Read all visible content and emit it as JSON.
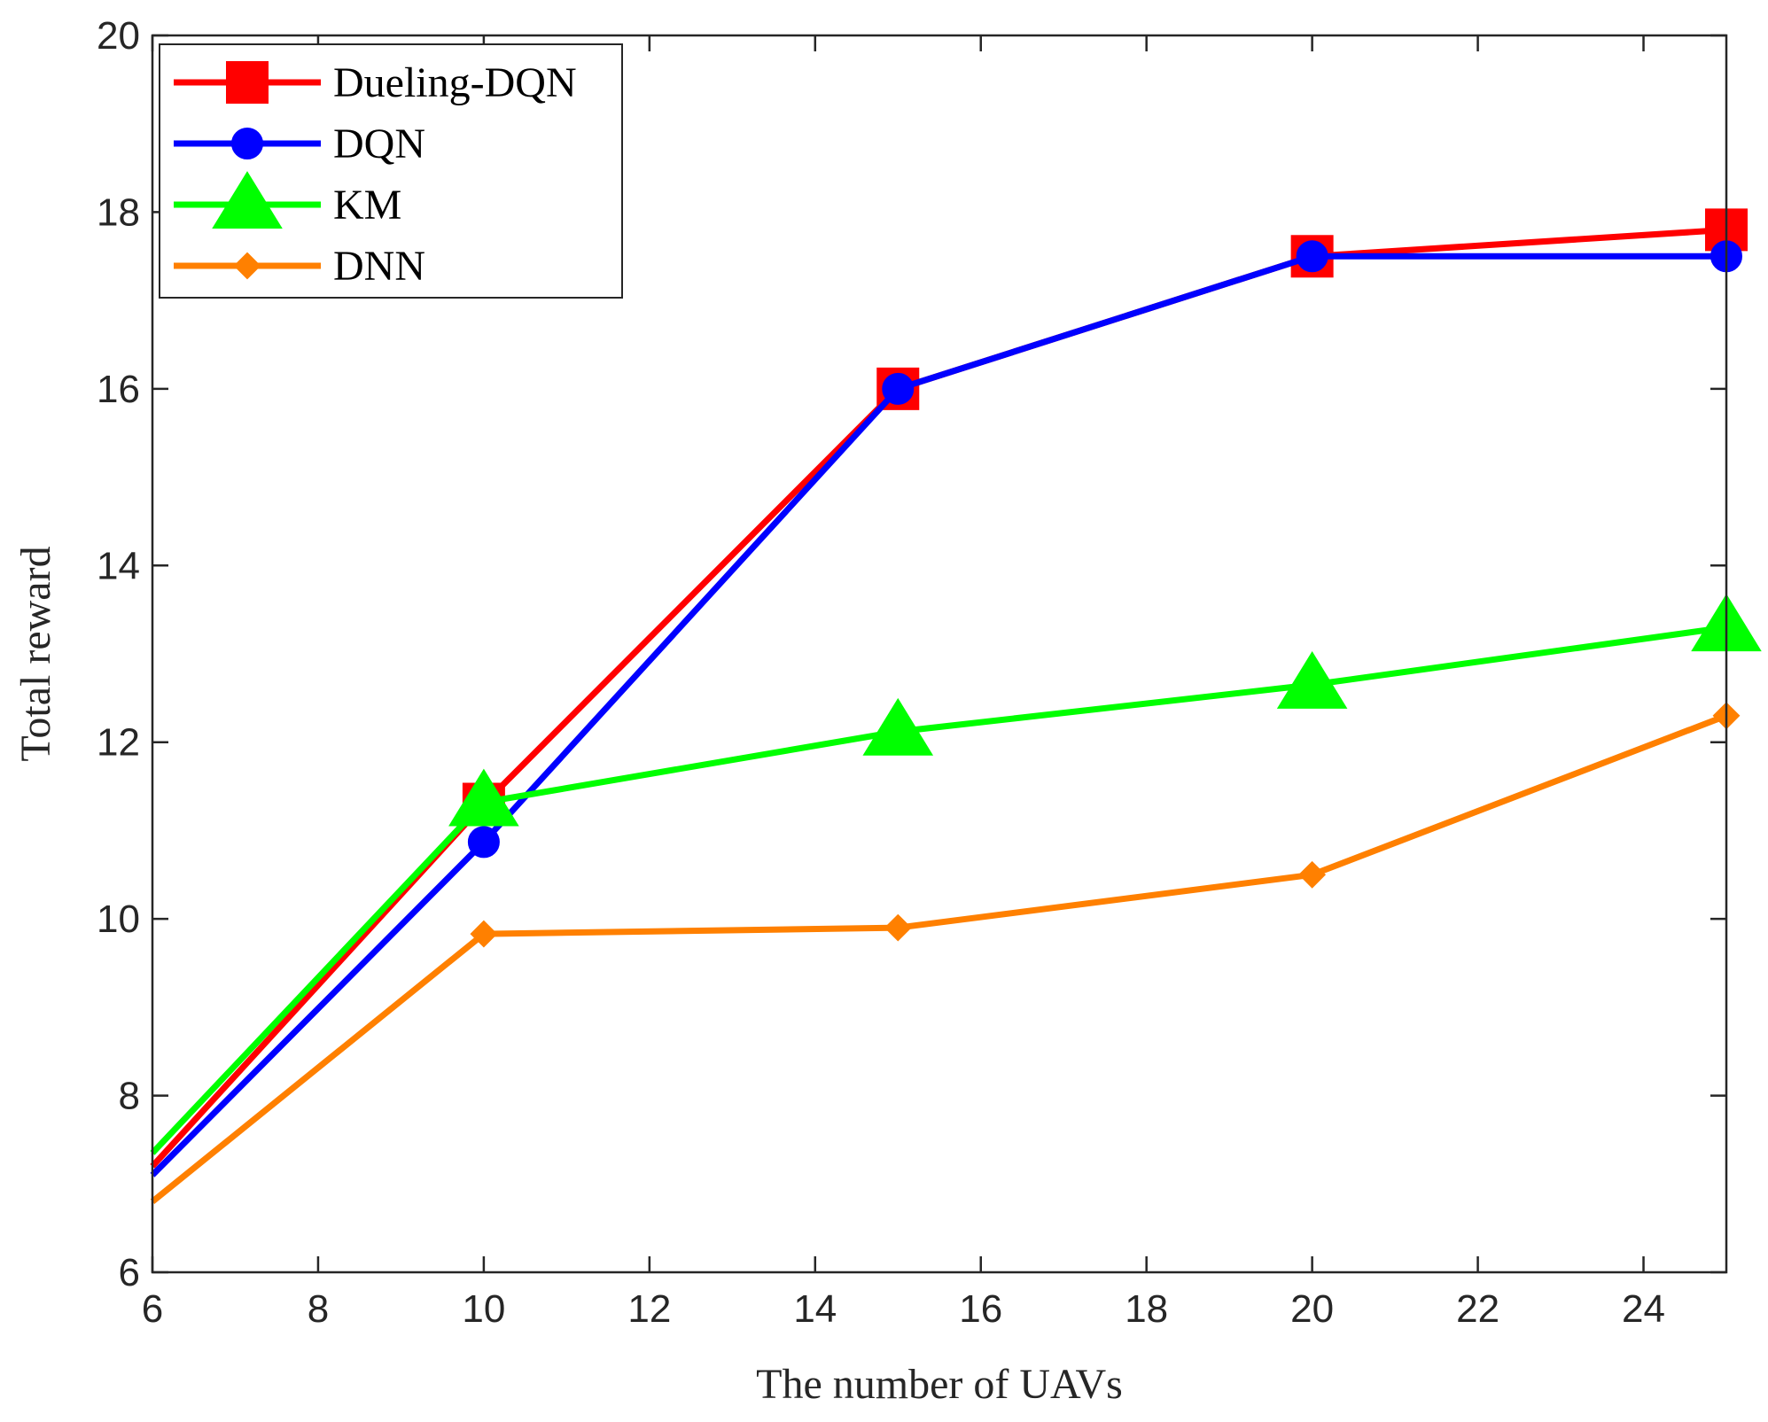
{
  "chart_data": {
    "type": "line",
    "xlabel": "The number of UAVs",
    "ylabel": "Total reward",
    "xlim": [
      6,
      25
    ],
    "ylim": [
      6,
      20
    ],
    "xticks": [
      6,
      8,
      10,
      12,
      14,
      16,
      18,
      20,
      22,
      24
    ],
    "yticks": [
      6,
      8,
      10,
      12,
      14,
      16,
      18,
      20
    ],
    "x": [
      6,
      10,
      15,
      20,
      25
    ],
    "legend_position": "top-left",
    "grid": false,
    "series": [
      {
        "name": "Dueling-DQN",
        "marker": "square",
        "color": "#ff0000",
        "values": [
          7.2,
          11.3,
          16.0,
          17.5,
          17.8
        ]
      },
      {
        "name": "DQN",
        "marker": "circle",
        "color": "#0000ff",
        "values": [
          7.1,
          10.87,
          16.0,
          17.5,
          17.5
        ]
      },
      {
        "name": "KM",
        "marker": "triangle",
        "color": "#00ff00",
        "values": [
          7.35,
          11.32,
          12.12,
          12.65,
          13.3
        ]
      },
      {
        "name": "DNN",
        "marker": "diamond",
        "color": "#ff8000",
        "values": [
          6.8,
          9.83,
          9.9,
          10.5,
          12.3
        ]
      }
    ]
  }
}
